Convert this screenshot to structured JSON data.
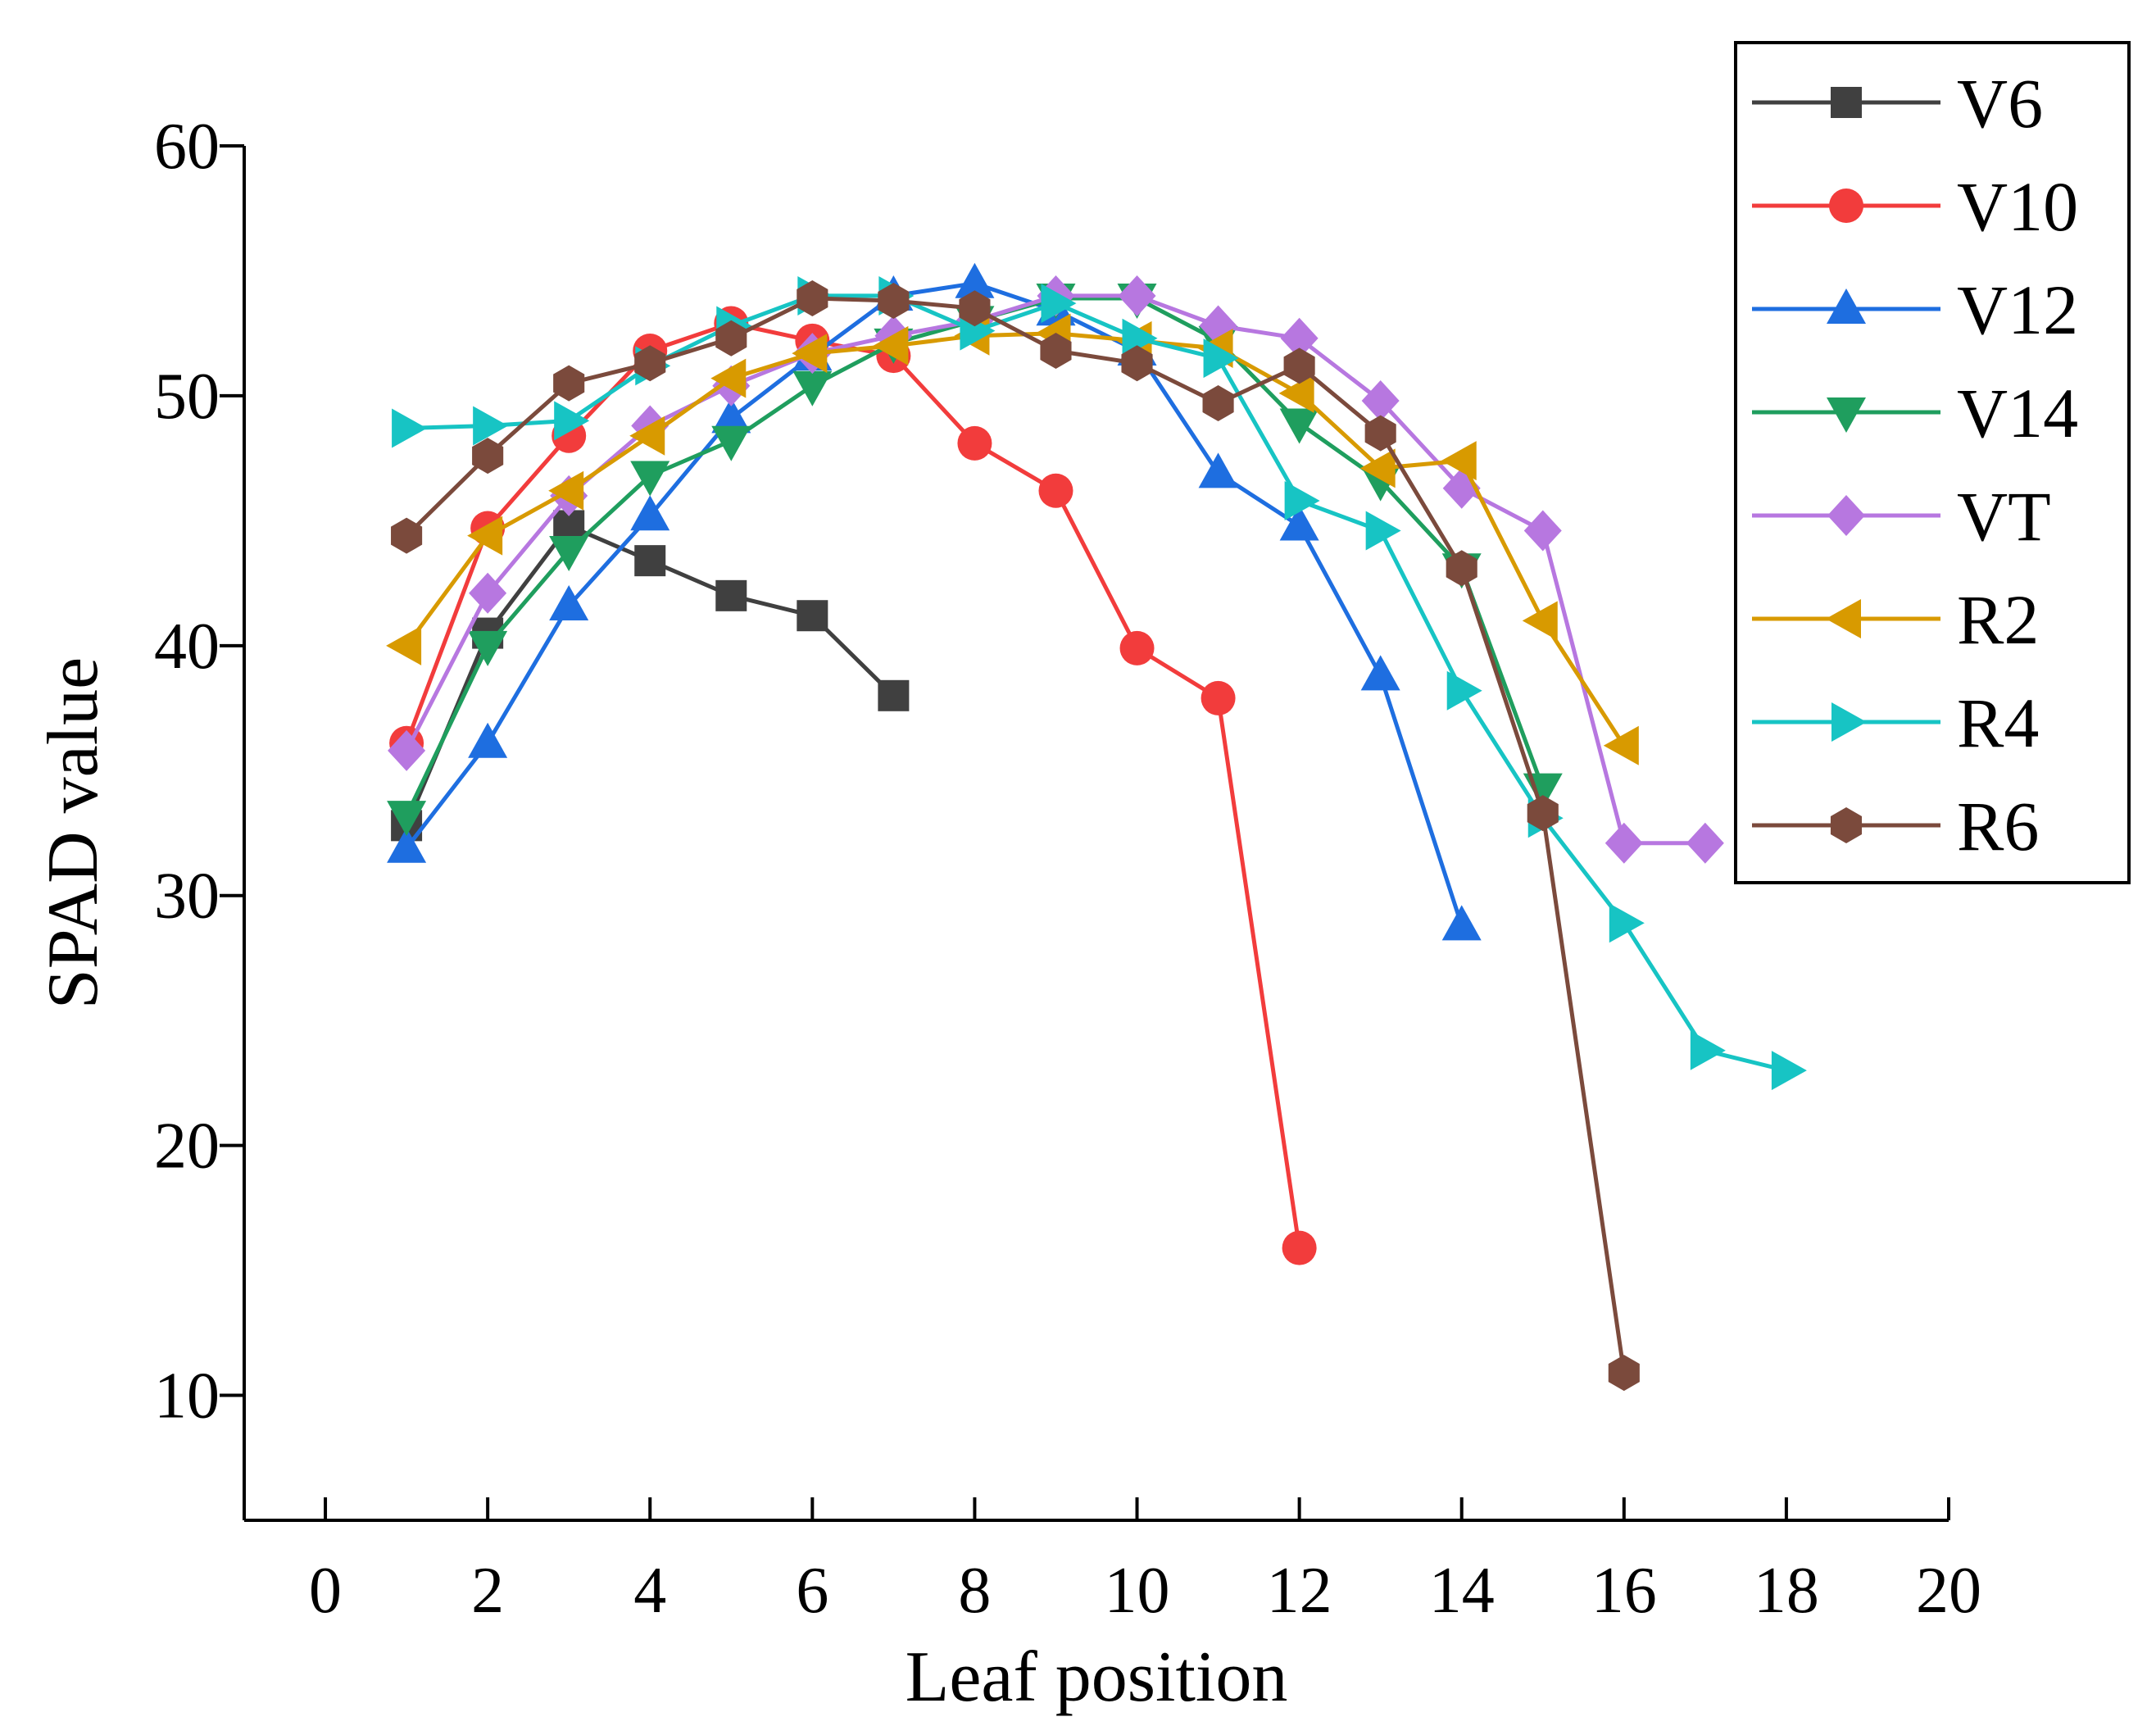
{
  "chart_data": {
    "type": "line",
    "title": "",
    "xlabel": "Leaf position",
    "ylabel": "SPAD value",
    "xlim": [
      -1,
      20
    ],
    "ylim": [
      5,
      60
    ],
    "xticks": [
      0,
      2,
      4,
      6,
      8,
      10,
      12,
      14,
      16,
      18,
      20
    ],
    "yticks": [
      10,
      20,
      30,
      40,
      50,
      60
    ],
    "grid": false,
    "legend_position": "top-right",
    "series": [
      {
        "name": "V6",
        "color": "#404040",
        "marker": "square",
        "x": [
          1,
          2,
          3,
          4,
          5,
          6,
          7
        ],
        "y": [
          32.8,
          40.5,
          44.8,
          43.4,
          42.0,
          41.2,
          38.0
        ]
      },
      {
        "name": "V10",
        "color": "#f23c3c",
        "marker": "circle",
        "x": [
          1,
          2,
          3,
          4,
          5,
          6,
          7,
          8,
          9,
          10,
          11,
          12
        ],
        "y": [
          36.1,
          44.7,
          48.4,
          51.8,
          52.9,
          52.2,
          51.6,
          48.1,
          46.2,
          39.9,
          37.9,
          15.9
        ]
      },
      {
        "name": "V12",
        "color": "#1e6ee0",
        "marker": "triangle-up",
        "x": [
          1,
          2,
          3,
          4,
          5,
          6,
          7,
          8,
          9,
          10,
          11,
          12,
          13,
          14
        ],
        "y": [
          31.9,
          36.1,
          41.6,
          45.2,
          49.1,
          51.6,
          54.0,
          54.5,
          53.4,
          51.8,
          46.9,
          44.8,
          38.8,
          28.8
        ]
      },
      {
        "name": "V14",
        "color": "#1f9e5e",
        "marker": "triangle-down",
        "x": [
          1,
          2,
          3,
          4,
          5,
          6,
          7,
          8,
          9,
          10,
          11,
          12,
          13,
          14,
          15
        ],
        "y": [
          33.2,
          40.0,
          43.8,
          46.8,
          48.2,
          50.4,
          52.1,
          53.0,
          53.9,
          53.9,
          52.2,
          48.9,
          46.6,
          43.1,
          34.3
        ]
      },
      {
        "name": "VT",
        "color": "#b777e0",
        "marker": "diamond",
        "x": [
          1,
          2,
          3,
          4,
          5,
          6,
          7,
          8,
          9,
          10,
          11,
          12,
          13,
          14,
          15,
          16,
          17
        ],
        "y": [
          35.8,
          42.1,
          46.0,
          48.8,
          50.4,
          51.7,
          52.4,
          53.0,
          54.0,
          54.0,
          52.8,
          52.3,
          49.8,
          46.3,
          44.6,
          32.1,
          32.1
        ]
      },
      {
        "name": "R2",
        "color": "#d89a00",
        "marker": "triangle-left",
        "x": [
          1,
          2,
          3,
          4,
          5,
          6,
          7,
          8,
          9,
          10,
          11,
          12,
          13,
          14,
          15,
          16
        ],
        "y": [
          40.0,
          44.4,
          46.2,
          48.4,
          50.7,
          51.7,
          52.0,
          52.4,
          52.5,
          52.2,
          51.9,
          50.1,
          47.1,
          47.4,
          41.0,
          36.0
        ]
      },
      {
        "name": "R4",
        "color": "#17c4c4",
        "marker": "triangle-right",
        "x": [
          1,
          2,
          3,
          4,
          5,
          6,
          7,
          8,
          9,
          10,
          11,
          12,
          13,
          14,
          15,
          16,
          17,
          18
        ],
        "y": [
          48.7,
          48.8,
          49.0,
          51.2,
          52.8,
          54.0,
          54.0,
          52.6,
          53.7,
          52.3,
          51.5,
          45.8,
          44.6,
          38.2,
          33.1,
          28.9,
          23.8,
          23.0
        ]
      },
      {
        "name": "R6",
        "color": "#7b4a3c",
        "marker": "hexagon",
        "x": [
          1,
          2,
          3,
          4,
          5,
          6,
          7,
          8,
          9,
          10,
          11,
          12,
          13,
          14,
          15,
          16
        ],
        "y": [
          44.4,
          47.6,
          50.5,
          51.3,
          52.3,
          53.9,
          53.8,
          53.5,
          51.8,
          51.3,
          49.7,
          51.2,
          48.5,
          43.1,
          33.3,
          10.9
        ]
      }
    ]
  }
}
